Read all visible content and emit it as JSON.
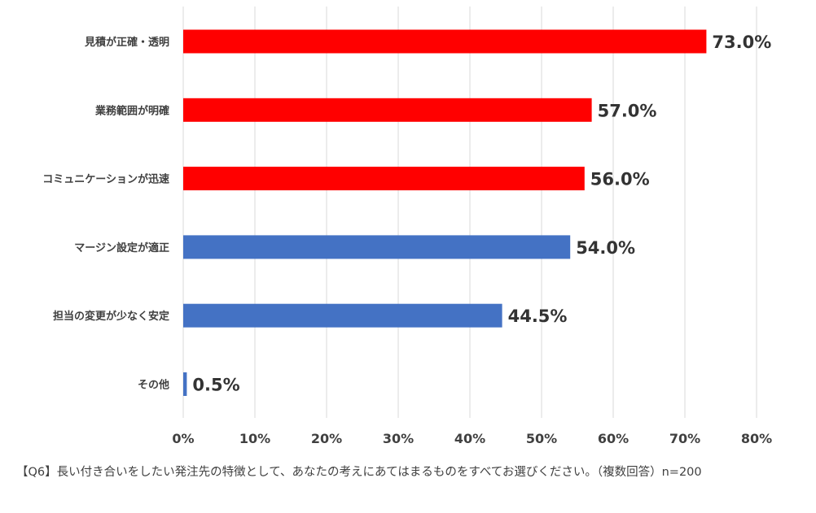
{
  "chart_data": {
    "type": "bar",
    "orientation": "horizontal",
    "categories": [
      "見積が正確・透明",
      "業務範囲が明確",
      "コミュニケーションが迅速",
      "マージン設定が適正",
      "担当の変更が少なく安定",
      "その他"
    ],
    "values": [
      73.0,
      57.0,
      56.0,
      54.0,
      44.5,
      0.5
    ],
    "value_labels": [
      "73.0%",
      "57.0%",
      "56.0%",
      "54.0%",
      "44.5%",
      "0.5%"
    ],
    "bar_colors": [
      "#ff0000",
      "#ff0000",
      "#ff0000",
      "#4472c4",
      "#4472c4",
      "#4472c4"
    ],
    "xlim": [
      0,
      80
    ],
    "x_ticks": [
      0,
      10,
      20,
      30,
      40,
      50,
      60,
      70,
      80
    ],
    "x_tick_labels": [
      "0%",
      "10%",
      "20%",
      "30%",
      "40%",
      "50%",
      "60%",
      "70%",
      "80%"
    ],
    "grid": "vertical",
    "title": "",
    "xlabel": "",
    "ylabel": ""
  },
  "footnote": "【Q6】長い付き合いをしたい発注先の特徴として、あなたの考えにあてはまるものをすべてお選びください。（複数回答）n=200",
  "colors": {
    "grid": "#d9d9d9",
    "text": "#404040",
    "value_text": "#333333"
  }
}
